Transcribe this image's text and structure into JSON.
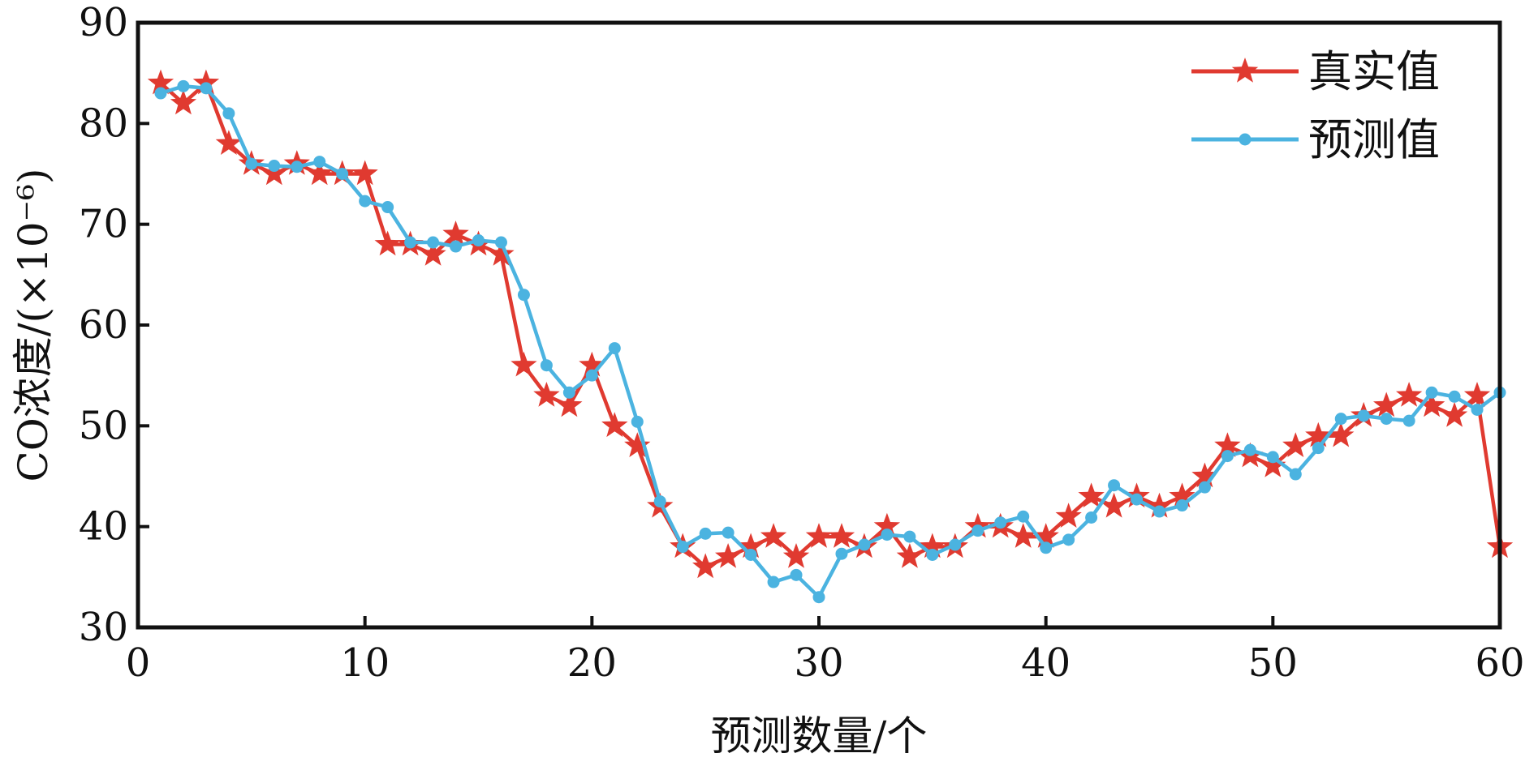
{
  "chart_data": {
    "type": "line",
    "title": "",
    "xlabel": "预测数量/个",
    "ylabel": "CO浓度/(×10⁻⁶)",
    "xlim": [
      0,
      60
    ],
    "ylim": [
      30,
      90
    ],
    "x_ticks": [
      0,
      10,
      20,
      30,
      40,
      50,
      60
    ],
    "y_ticks": [
      30,
      40,
      50,
      60,
      70,
      80,
      90
    ],
    "grid": false,
    "legend_position": "top-right",
    "x": [
      1,
      2,
      3,
      4,
      5,
      6,
      7,
      8,
      9,
      10,
      11,
      12,
      13,
      14,
      15,
      16,
      17,
      18,
      19,
      20,
      21,
      22,
      23,
      24,
      25,
      26,
      27,
      28,
      29,
      30,
      31,
      32,
      33,
      34,
      35,
      36,
      37,
      38,
      39,
      40,
      41,
      42,
      43,
      44,
      45,
      46,
      47,
      48,
      49,
      50,
      51,
      52,
      53,
      54,
      55,
      56,
      57,
      58,
      59,
      60
    ],
    "series": [
      {
        "name": "真实值",
        "color": "#e03a30",
        "marker": "star",
        "values": [
          84,
          82,
          84,
          78,
          76,
          75,
          76,
          75,
          75,
          75,
          68,
          68,
          67,
          69,
          68,
          67,
          56,
          53,
          52,
          56,
          50,
          48,
          42,
          38,
          36,
          37,
          38,
          39,
          37,
          39,
          39,
          38,
          40,
          37,
          38,
          38,
          40,
          40,
          39,
          39,
          41,
          43,
          42,
          43,
          42,
          43,
          45,
          48,
          47,
          46,
          48,
          49,
          49,
          51,
          52,
          53,
          52,
          51,
          53,
          38
        ]
      },
      {
        "name": "预测值",
        "color": "#4bb3e0",
        "marker": "circle",
        "values": [
          83,
          83.7,
          83.5,
          81,
          76,
          75.8,
          75.7,
          76.2,
          75,
          72.3,
          71.7,
          68.2,
          68.2,
          67.8,
          68.4,
          68.2,
          63,
          56,
          53.3,
          55,
          57.7,
          50.4,
          42.5,
          38,
          39.3,
          39.4,
          37.2,
          34.5,
          35.2,
          33,
          37.3,
          38.2,
          39.2,
          39,
          37.2,
          38.2,
          39.6,
          40.4,
          41,
          37.9,
          38.7,
          40.9,
          44.1,
          42.7,
          41.5,
          42.1,
          43.9,
          47,
          47.6,
          46.9,
          45.2,
          47.8,
          50.7,
          51,
          50.7,
          50.5,
          53.3,
          52.9,
          51.6,
          53.3
        ]
      }
    ]
  }
}
